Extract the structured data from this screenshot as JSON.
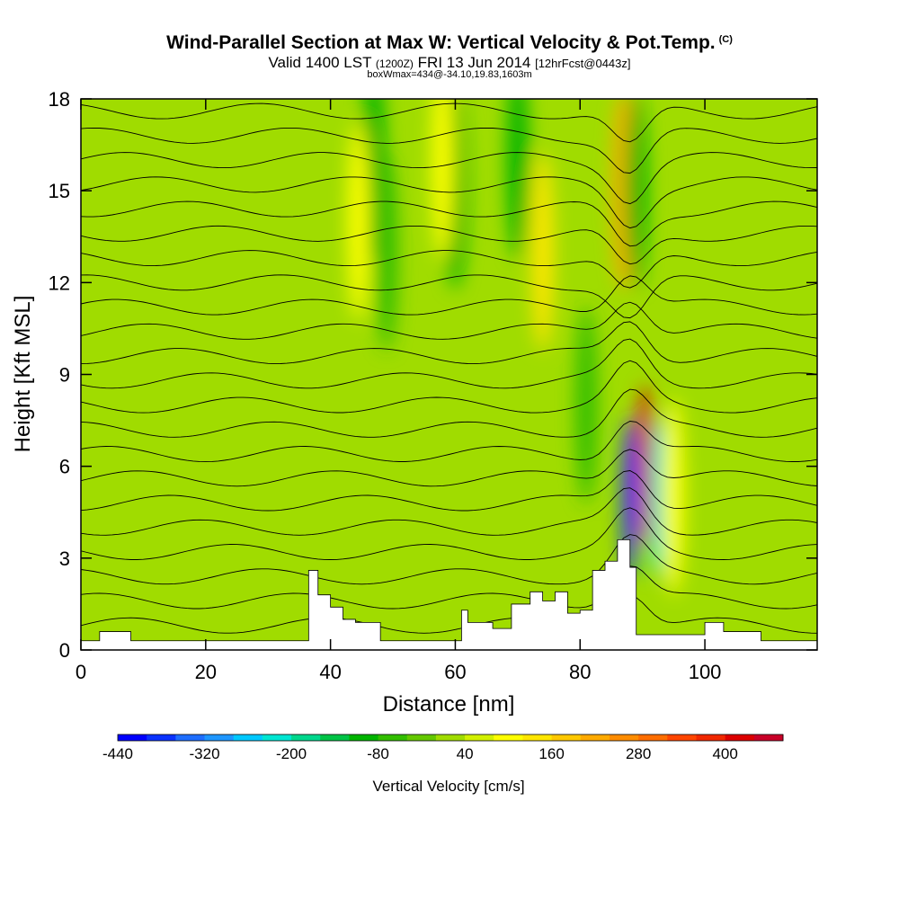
{
  "title": {
    "main": "Wind-Parallel Section at Max W: Vertical Velocity & Pot.Temp.",
    "copyright": "(C)",
    "valid_a": "Valid 1400 LST",
    "valid_b": "(1200Z)",
    "valid_c": "FRI 13 Jun 2014",
    "valid_d": "[12hrFcst@0443z]",
    "note": "boxWmax=434@-34.10,19.83,1603m"
  },
  "chart_data": {
    "type": "heatmap",
    "xlabel": "Distance [nm]",
    "ylabel": "Height [Kft MSL]",
    "xlim": [
      0,
      118
    ],
    "ylim": [
      0,
      18
    ],
    "x_ticks": [
      "0",
      "20",
      "40",
      "60",
      "80",
      "100"
    ],
    "y_ticks": [
      "0",
      "3",
      "6",
      "9",
      "12",
      "15",
      "18"
    ],
    "x_tick_values": [
      0,
      20,
      40,
      60,
      80,
      100
    ],
    "y_tick_values": [
      0,
      3,
      6,
      9,
      12,
      15,
      18
    ],
    "colorbar": {
      "title": "Vertical Velocity [cm/s]",
      "labels": [
        "-440",
        "-320",
        "-200",
        "-80",
        "40",
        "160",
        "280",
        "400"
      ],
      "label_values": [
        -440,
        -320,
        -200,
        -80,
        40,
        160,
        280,
        400
      ],
      "range": [
        -440,
        480
      ],
      "step": 40,
      "colors": [
        "#0000ff",
        "#0a32ff",
        "#1e6eff",
        "#1e96ff",
        "#00c8ff",
        "#00e6d2",
        "#00d78c",
        "#00c346",
        "#00b400",
        "#32be00",
        "#64c800",
        "#a0dc00",
        "#d2f000",
        "#ffff00",
        "#ffe600",
        "#ffc800",
        "#ffaa00",
        "#ff8c00",
        "#ff6e00",
        "#ff4600",
        "#f02800",
        "#dc0000",
        "#c80028"
      ]
    },
    "vertical_velocity_cells": [
      {
        "x": 47,
        "y": 16,
        "w": -120
      },
      {
        "x": 44.5,
        "y": 14,
        "w": 100
      },
      {
        "x": 49,
        "y": 13,
        "w": -80
      },
      {
        "x": 60,
        "y": 15,
        "w": -100
      },
      {
        "x": 58,
        "y": 16,
        "w": 100
      },
      {
        "x": 70,
        "y": 16,
        "w": -100
      },
      {
        "x": 74,
        "y": 13,
        "w": 120
      },
      {
        "x": 87,
        "y": 15,
        "w": 200
      },
      {
        "x": 89,
        "y": 15,
        "w": -120
      },
      {
        "x": 88,
        "y": 5,
        "w": -380
      },
      {
        "x": 90.5,
        "y": 6,
        "w": 420
      },
      {
        "x": 92.5,
        "y": 5,
        "w": -220
      },
      {
        "x": 95,
        "y": 5,
        "w": 100
      },
      {
        "x": 81,
        "y": 8,
        "w": -80
      }
    ],
    "terrain_heights_kft": [
      {
        "x": 0,
        "h": 0.3
      },
      {
        "x": 3,
        "h": 0.6
      },
      {
        "x": 8,
        "h": 0.3
      },
      {
        "x": 35,
        "h": 0.3
      },
      {
        "x": 36.5,
        "h": 2.6
      },
      {
        "x": 38,
        "h": 1.8
      },
      {
        "x": 40,
        "h": 1.4
      },
      {
        "x": 42,
        "h": 1.0
      },
      {
        "x": 44,
        "h": 0.9
      },
      {
        "x": 48,
        "h": 0.3
      },
      {
        "x": 59,
        "h": 0.3
      },
      {
        "x": 61,
        "h": 1.3
      },
      {
        "x": 62,
        "h": 0.9
      },
      {
        "x": 66,
        "h": 0.7
      },
      {
        "x": 69,
        "h": 1.5
      },
      {
        "x": 72,
        "h": 1.9
      },
      {
        "x": 74,
        "h": 1.6
      },
      {
        "x": 76,
        "h": 1.9
      },
      {
        "x": 78,
        "h": 1.2
      },
      {
        "x": 80,
        "h": 1.3
      },
      {
        "x": 82,
        "h": 2.6
      },
      {
        "x": 84,
        "h": 2.9
      },
      {
        "x": 86,
        "h": 3.6
      },
      {
        "x": 88,
        "h": 2.7
      },
      {
        "x": 89,
        "h": 0.5
      },
      {
        "x": 100,
        "h": 0.9
      },
      {
        "x": 103,
        "h": 0.6
      },
      {
        "x": 109,
        "h": 0.3
      },
      {
        "x": 118,
        "h": 0.3
      }
    ]
  }
}
